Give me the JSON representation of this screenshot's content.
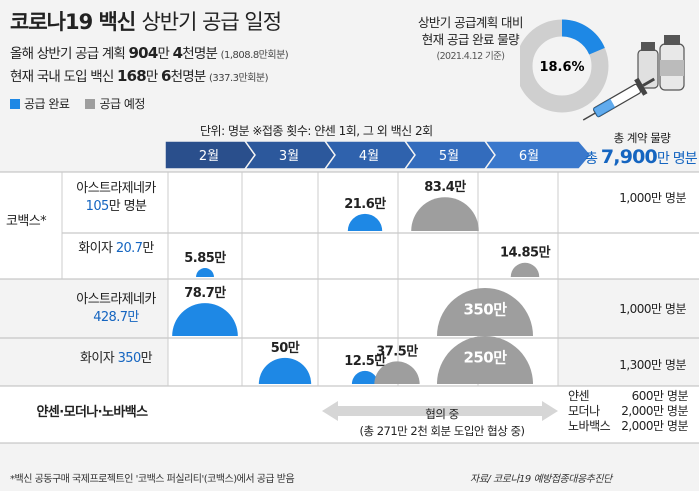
{
  "title_bold": "코로나19 백신",
  "title_light": "상반기 공급 일정",
  "headline1": {
    "prefix": "올해 상반기 공급 계획 ",
    "num1": "904",
    "mid1": "만 ",
    "num2": "4",
    "mid2": "천명분",
    "paren": "(1,808.8만회분)"
  },
  "headline2": {
    "prefix": "현재 국내 도입 백신 ",
    "num1": "168",
    "mid1": "만 ",
    "num2": "6",
    "mid2": "천명분",
    "paren": "(337.3만회분)"
  },
  "legend": {
    "done": "공급 완료",
    "planned": "공급 예정",
    "done_color": "#1e88e5",
    "planned_color": "#9e9e9e"
  },
  "donut": {
    "line1": "상반기 공급계획 대비",
    "line2": "현재 공급 완료 물량",
    "date": "(2021.4.12 기준)",
    "percent": "18.6%",
    "value": 18.6
  },
  "note": "단위: 명분    ※접종 횟수: 얀센 1회, 그 외 백신 2회",
  "total": {
    "label": "총 계약 물량",
    "prefix": "총 ",
    "num": "7,900",
    "suffix": "만 명분"
  },
  "group_label": "코백스*",
  "rows": [
    {
      "name": "아스트라제네카",
      "amount": "105",
      "amount_suffix": "만 명분",
      "contract": "1,000만 명분"
    },
    {
      "name": "화이자 ",
      "amount": "20.7",
      "amount_suffix": "만",
      "contract": ""
    },
    {
      "name": "아스트라제네카",
      "amount": "428.7",
      "amount_suffix": "만",
      "contract": "1,000만 명분"
    },
    {
      "name": "화이자 ",
      "amount": "350",
      "amount_suffix": "만",
      "contract": "1,300만 명분"
    },
    {
      "name": "얀센·모더나·노바백스",
      "amount": "",
      "amount_suffix": "",
      "contract": ""
    }
  ],
  "nego": {
    "label": "협의 중",
    "detail": "(총 271만 2천 회분 도입안 협상 중)"
  },
  "rest_contracts": [
    {
      "name": "얀센",
      "value": "600만 명분"
    },
    {
      "name": "모더나",
      "value": "2,000만 명분"
    },
    {
      "name": "노바백스",
      "value": "2,000만 명분"
    }
  ],
  "footer": "*백신 공동구매 국제프로젝트인 '코백스 퍼실리티'(코백스)에서 공급 받음",
  "source": "자료/ 코로나19 예방접종대응추진단",
  "chart_data": {
    "type": "bubble-timeline",
    "unit": "만 명분",
    "months": [
      "2월",
      "3월",
      "4월",
      "5월",
      "6월"
    ],
    "points": [
      {
        "row": 0,
        "month": 2,
        "value": 21.6,
        "label": "21.6만",
        "status": "done"
      },
      {
        "row": 0,
        "month": 3,
        "value": 83.4,
        "label": "83.4만",
        "status": "planned"
      },
      {
        "row": 1,
        "month": 0,
        "value": 5.85,
        "label": "5.85만",
        "status": "done"
      },
      {
        "row": 1,
        "month": 4,
        "value": 14.85,
        "label": "14.85만",
        "status": "planned"
      },
      {
        "row": 2,
        "month": 0,
        "value": 78.7,
        "label": "78.7만",
        "status": "done"
      },
      {
        "row": 2,
        "month": 3.5,
        "value": 350,
        "label": "350만",
        "status": "planned"
      },
      {
        "row": 3,
        "month": 1,
        "value": 50,
        "label": "50만",
        "status": "done"
      },
      {
        "row": 3,
        "month": 2,
        "value": 12.5,
        "label": "12.5만",
        "status": "done"
      },
      {
        "row": 3,
        "month": 2.4,
        "value": 37.5,
        "label": "37.5만",
        "status": "planned"
      },
      {
        "row": 3,
        "month": 3.5,
        "value": 250,
        "label": "250만",
        "status": "planned"
      }
    ]
  }
}
